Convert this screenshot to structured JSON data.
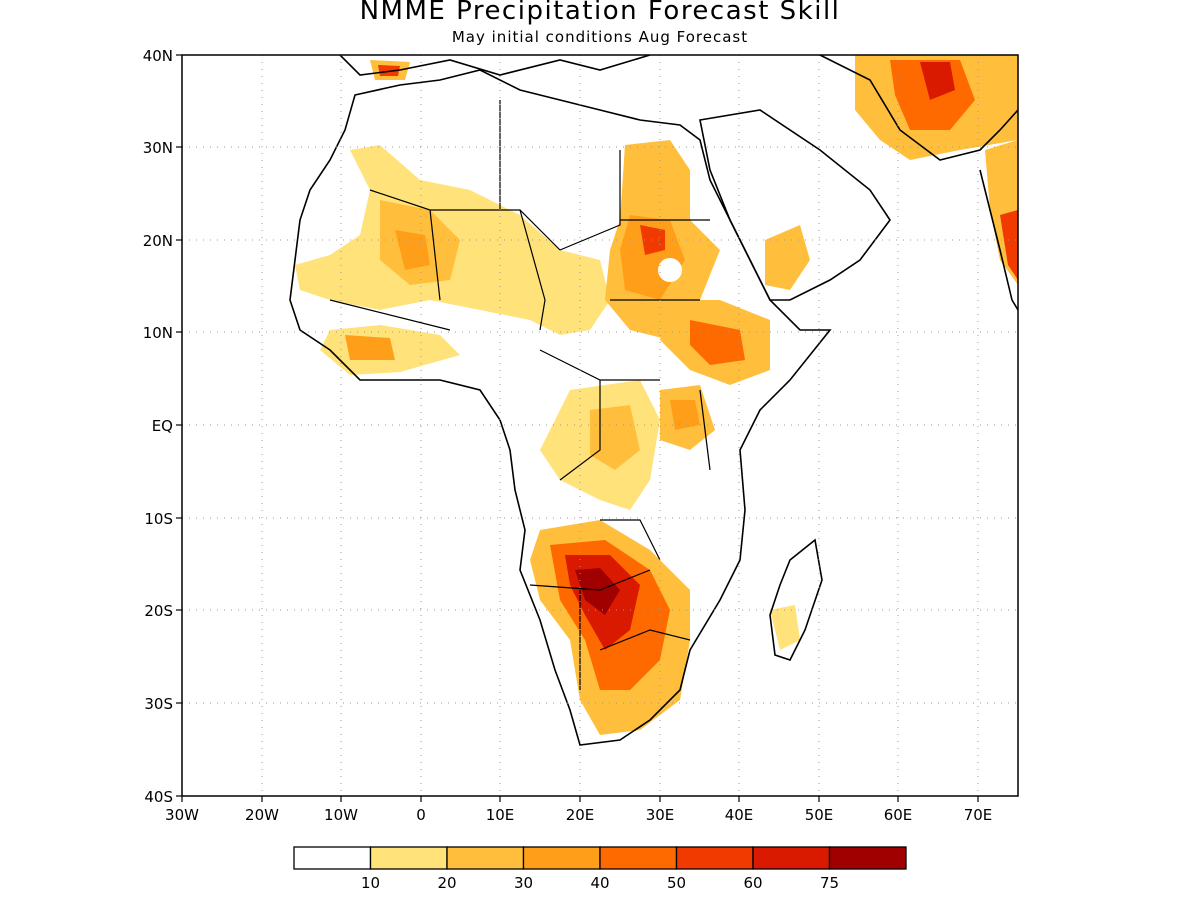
{
  "header": {
    "title": "NMME Precipitation Forecast Skill",
    "subtitle": "May initial conditions  Aug Forecast"
  },
  "map": {
    "lat_range": [
      -40,
      40
    ],
    "lon_range": [
      -30,
      75
    ],
    "lat_ticks": [
      "40N",
      "30N",
      "20N",
      "10N",
      "EQ",
      "10S",
      "20S",
      "30S",
      "40S"
    ],
    "lon_ticks": [
      "30W",
      "20W",
      "10W",
      "0",
      "10E",
      "20E",
      "30E",
      "40E",
      "50E",
      "60E",
      "70E"
    ],
    "grid": "dotted"
  },
  "colorbar": {
    "thresholds": [
      "10",
      "20",
      "30",
      "40",
      "50",
      "60",
      "75"
    ],
    "colors": [
      "#ffffff",
      "#ffe27a",
      "#ffbf3c",
      "#ff9f19",
      "#ff6a00",
      "#f03a00",
      "#d91a00",
      "#a00000"
    ]
  }
}
